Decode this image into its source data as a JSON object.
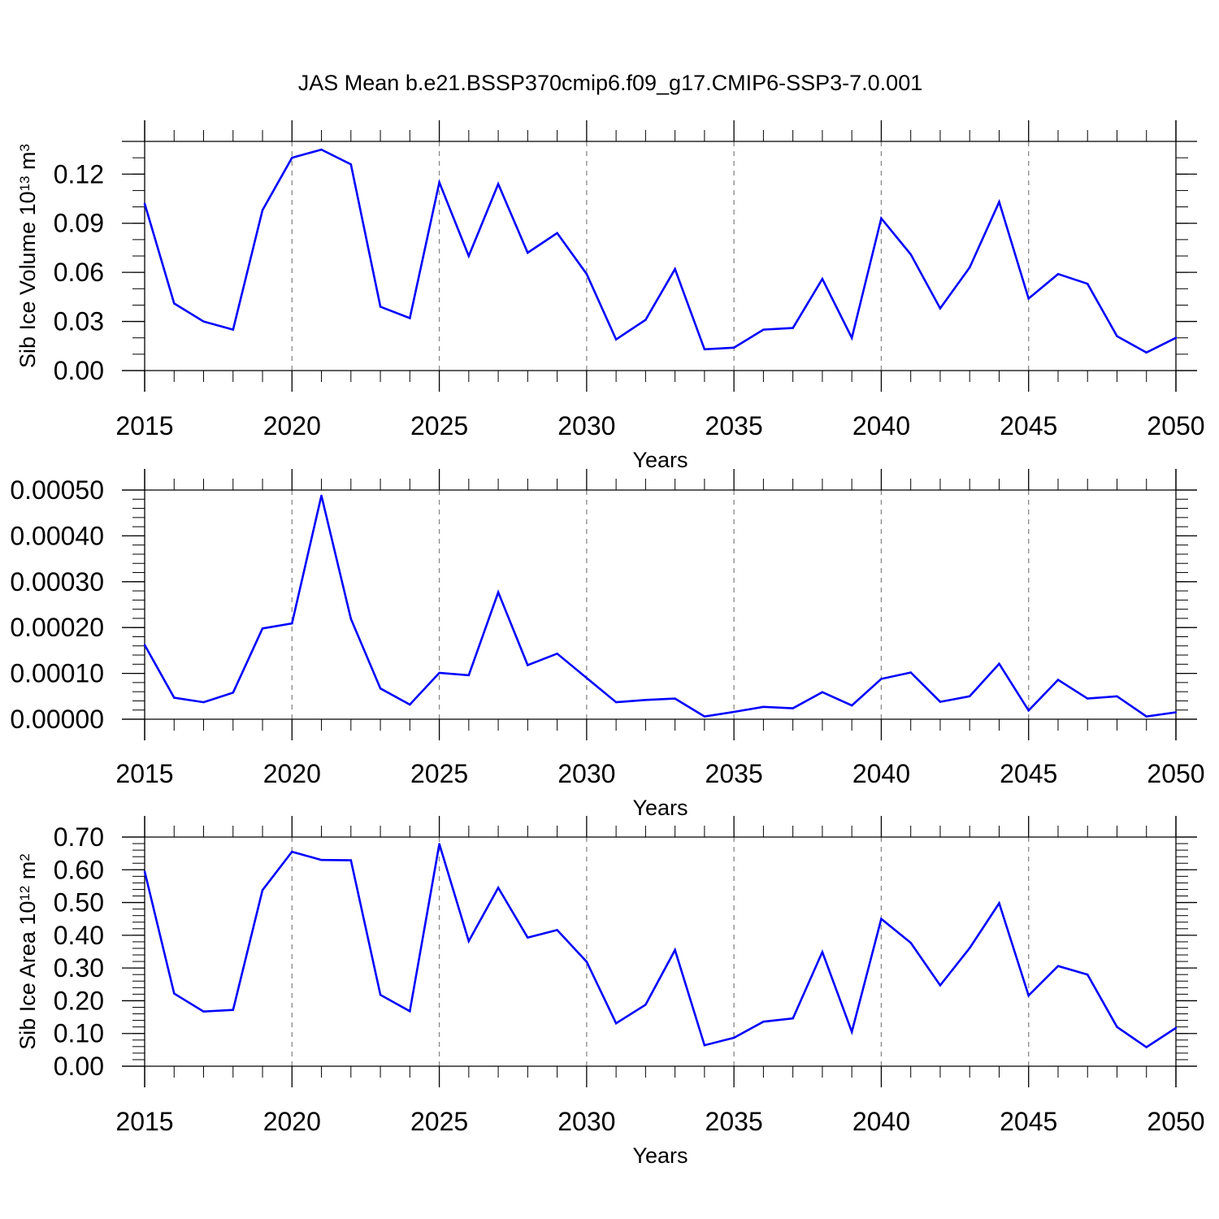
{
  "title": "JAS Mean b.e21.BSSP370cmip6.f09_g17.CMIP6-SSP3-7.0.001",
  "colors": {
    "line": "#0000ff",
    "axis": "#000000",
    "grid": "#888888",
    "background": "#ffffff"
  },
  "chart_data": [
    {
      "type": "line",
      "panel": 1,
      "xlabel": "Years",
      "ylabel": "Sib Ice Volume 10",
      "ylabel_exp": "13",
      "ylabel_unit": " m",
      "ylabel_unit_exp": "3",
      "xlim": [
        2015,
        2050
      ],
      "ylim": [
        0.0,
        0.14
      ],
      "xticks": [
        2015,
        2020,
        2025,
        2030,
        2035,
        2040,
        2045,
        2050
      ],
      "xtick_labels": [
        "2015",
        "2020",
        "2025",
        "2030",
        "2035",
        "2040",
        "2045",
        "2050"
      ],
      "yticks": [
        0.0,
        0.03,
        0.06,
        0.09,
        0.12
      ],
      "ytick_labels": [
        "0.00",
        "0.03",
        "0.06",
        "0.09",
        "0.12"
      ],
      "yminor_step": 0.01,
      "x": [
        2015,
        2016,
        2017,
        2018,
        2019,
        2020,
        2021,
        2022,
        2023,
        2024,
        2025,
        2026,
        2027,
        2028,
        2029,
        2030,
        2031,
        2032,
        2033,
        2034,
        2035,
        2036,
        2037,
        2038,
        2039,
        2040,
        2041,
        2042,
        2043,
        2044,
        2045,
        2046,
        2047,
        2048,
        2049,
        2050
      ],
      "values": [
        0.102,
        0.041,
        0.03,
        0.025,
        0.098,
        0.13,
        0.135,
        0.126,
        0.039,
        0.032,
        0.115,
        0.07,
        0.114,
        0.072,
        0.084,
        0.059,
        0.019,
        0.031,
        0.062,
        0.013,
        0.014,
        0.025,
        0.026,
        0.056,
        0.02,
        0.093,
        0.071,
        0.038,
        0.063,
        0.103,
        0.044,
        0.059,
        0.053,
        0.021,
        0.011,
        0.02
      ]
    },
    {
      "type": "line",
      "panel": 2,
      "xlabel": "Years",
      "ylabel": "",
      "xlim": [
        2015,
        2050
      ],
      "ylim": [
        0.0,
        0.0005
      ],
      "xticks": [
        2015,
        2020,
        2025,
        2030,
        2035,
        2040,
        2045,
        2050
      ],
      "xtick_labels": [
        "2015",
        "2020",
        "2025",
        "2030",
        "2035",
        "2040",
        "2045",
        "2050"
      ],
      "yticks": [
        0.0,
        0.0001,
        0.0002,
        0.0003,
        0.0004,
        0.0005
      ],
      "ytick_labels": [
        "0.00000",
        "0.00010",
        "0.00020",
        "0.00030",
        "0.00040",
        "0.00050"
      ],
      "yminor_step": 2e-05,
      "x": [
        2015,
        2016,
        2017,
        2018,
        2019,
        2020,
        2021,
        2022,
        2023,
        2024,
        2025,
        2026,
        2027,
        2028,
        2029,
        2030,
        2031,
        2032,
        2033,
        2034,
        2035,
        2036,
        2037,
        2038,
        2039,
        2040,
        2041,
        2042,
        2043,
        2044,
        2045,
        2046,
        2047,
        2048,
        2049,
        2050
      ],
      "values": [
        0.000162,
        4.7e-05,
        3.7e-05,
        5.8e-05,
        0.000198,
        0.000209,
        0.000488,
        0.000219,
        6.7e-05,
        3.2e-05,
        0.000101,
        9.6e-05,
        0.000277,
        0.000118,
        0.000143,
        9e-05,
        3.7e-05,
        4.2e-05,
        4.5e-05,
        6e-06,
        1.6e-05,
        2.7e-05,
        2.4e-05,
        5.9e-05,
        3e-05,
        8.8e-05,
        0.000102,
        3.8e-05,
        5e-05,
        0.000121,
        1.9e-05,
        8.6e-05,
        4.5e-05,
        5e-05,
        6e-06,
        1.5e-05
      ]
    },
    {
      "type": "line",
      "panel": 3,
      "xlabel": "Years",
      "ylabel": "Sib Ice Area 10",
      "ylabel_exp": "12",
      "ylabel_unit": " m",
      "ylabel_unit_exp": "2",
      "xlim": [
        2015,
        2050
      ],
      "ylim": [
        0.0,
        0.7
      ],
      "xticks": [
        2015,
        2020,
        2025,
        2030,
        2035,
        2040,
        2045,
        2050
      ],
      "xtick_labels": [
        "2015",
        "2020",
        "2025",
        "2030",
        "2035",
        "2040",
        "2045",
        "2050"
      ],
      "yticks": [
        0.0,
        0.1,
        0.2,
        0.3,
        0.4,
        0.5,
        0.6,
        0.7
      ],
      "ytick_labels": [
        "0.00",
        "0.10",
        "0.20",
        "0.30",
        "0.40",
        "0.50",
        "0.60",
        "0.70"
      ],
      "yminor_step": 0.02,
      "x": [
        2015,
        2016,
        2017,
        2018,
        2019,
        2020,
        2021,
        2022,
        2023,
        2024,
        2025,
        2026,
        2027,
        2028,
        2029,
        2030,
        2031,
        2032,
        2033,
        2034,
        2035,
        2036,
        2037,
        2038,
        2039,
        2040,
        2041,
        2042,
        2043,
        2044,
        2045,
        2046,
        2047,
        2048,
        2049,
        2050
      ],
      "values": [
        0.595,
        0.222,
        0.167,
        0.172,
        0.538,
        0.655,
        0.63,
        0.629,
        0.218,
        0.168,
        0.679,
        0.382,
        0.545,
        0.393,
        0.416,
        0.319,
        0.131,
        0.188,
        0.355,
        0.064,
        0.087,
        0.136,
        0.146,
        0.349,
        0.105,
        0.45,
        0.377,
        0.247,
        0.361,
        0.498,
        0.216,
        0.306,
        0.28,
        0.12,
        0.058,
        0.117
      ]
    }
  ]
}
